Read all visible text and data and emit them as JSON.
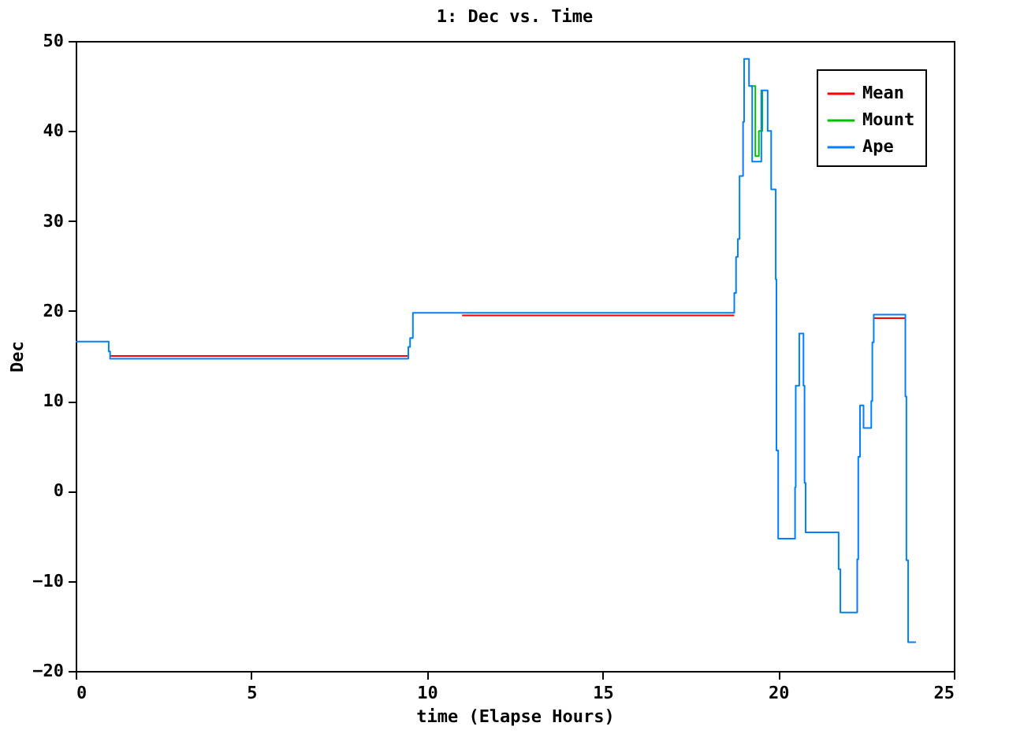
{
  "chart_data": {
    "type": "step",
    "title": "1: Dec vs. Time",
    "xlabel": "time (Elapse Hours)",
    "ylabel": "Dec",
    "xlim": [
      0,
      25
    ],
    "xticks": [
      0,
      5,
      10,
      15,
      20,
      25
    ],
    "ylim": [
      -20,
      50
    ],
    "yticks": [
      -20,
      -10,
      0,
      10,
      20,
      30,
      40,
      50
    ],
    "legend": "top right",
    "grid": false,
    "series": [
      {
        "name": "Mean",
        "color": "#ff0000",
        "x": [
          0.98,
          9.47,
          9.5,
          11,
          18.75,
          18.76,
          22.72,
          23.62
        ],
        "values": [
          15.0,
          15.0,
          null,
          19.5,
          19.5,
          null,
          19.2,
          19.2
        ]
      },
      {
        "name": "Mount",
        "color": "#00c000",
        "x": [
          19.22,
          19.35,
          19.45,
          19.55
        ],
        "values": [
          45,
          37.2,
          40,
          44.5
        ]
      },
      {
        "name": "Ape",
        "color": "#0080ff",
        "x": [
          0,
          0.94,
          0.98,
          9.47,
          9.52,
          9.6,
          18.75,
          18.8,
          18.85,
          18.9,
          19.0,
          19.03,
          19.17,
          19.26,
          19.52,
          19.7,
          19.8,
          19.93,
          19.95,
          20.0,
          20.48,
          20.5,
          20.6,
          20.72,
          20.75,
          20.78,
          21.72,
          21.77,
          22.25,
          22.28,
          22.33,
          22.43,
          22.65,
          22.68,
          22.72,
          23.62,
          23.65,
          23.7,
          23.92
        ],
        "values": [
          16.6,
          15.5,
          14.7,
          16,
          17,
          19.8,
          22,
          26,
          28,
          35,
          41,
          48,
          45,
          36.6,
          44.5,
          40,
          33.5,
          23.5,
          4.5,
          -5.3,
          0.4,
          11.7,
          17.5,
          11.7,
          0.9,
          -4.6,
          -8.7,
          -13.5,
          -7.6,
          3.8,
          9.5,
          7,
          10,
          16.5,
          19.6,
          10.5,
          -7.7,
          -16.8,
          -16.8
        ]
      }
    ]
  }
}
